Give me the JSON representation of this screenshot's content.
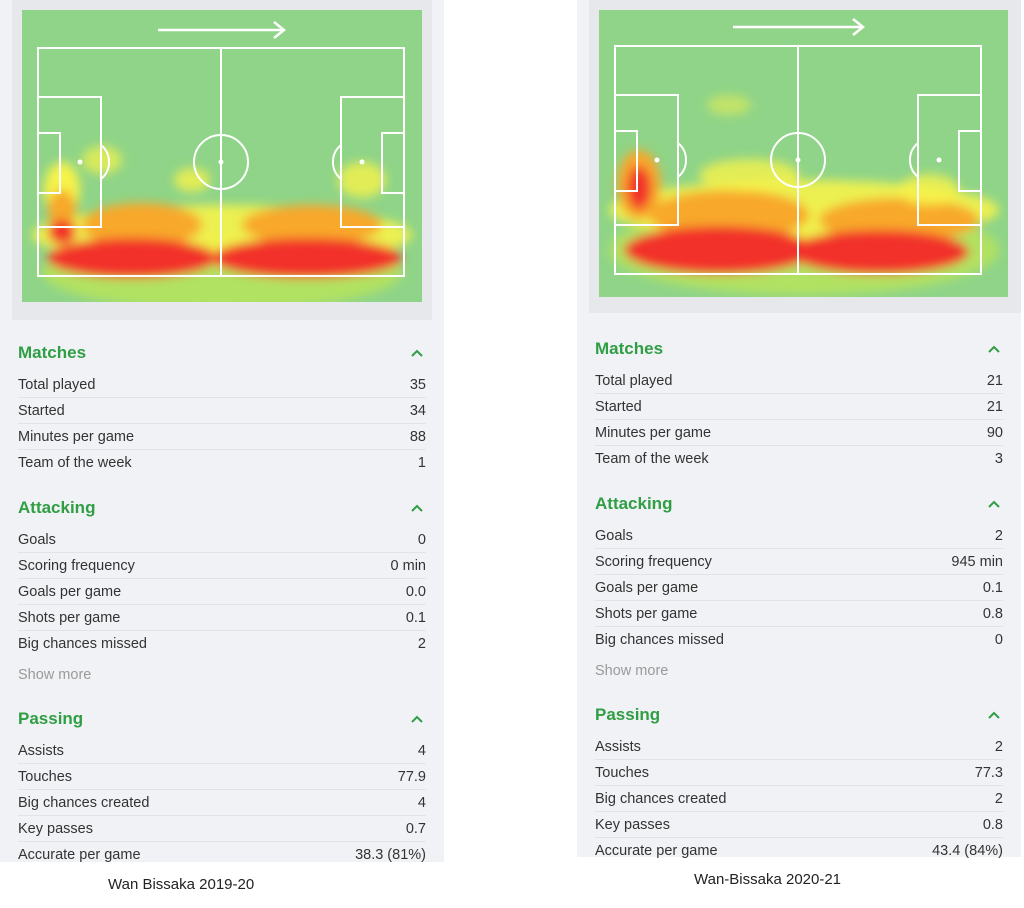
{
  "panels": [
    {
      "sections": {
        "matches": {
          "title": "Matches",
          "rows": [
            {
              "label": "Total played",
              "value": "35"
            },
            {
              "label": "Started",
              "value": "34"
            },
            {
              "label": "Minutes per game",
              "value": "88"
            },
            {
              "label": "Team of the week",
              "value": "1"
            }
          ]
        },
        "attacking": {
          "title": "Attacking",
          "rows": [
            {
              "label": "Goals",
              "value": "0"
            },
            {
              "label": "Scoring frequency",
              "value": "0 min"
            },
            {
              "label": "Goals per game",
              "value": "0.0"
            },
            {
              "label": "Shots per game",
              "value": "0.1"
            },
            {
              "label": "Big chances missed",
              "value": "2"
            }
          ],
          "show_more": "Show more"
        },
        "passing": {
          "title": "Passing",
          "rows": [
            {
              "label": "Assists",
              "value": "4"
            },
            {
              "label": "Touches",
              "value": "77.9"
            },
            {
              "label": "Big chances created",
              "value": "4"
            },
            {
              "label": "Key passes",
              "value": "0.7"
            },
            {
              "label": "Accurate per game",
              "value": "38.3 (81%)"
            }
          ]
        }
      },
      "caption": "Wan Bissaka 2019-20"
    },
    {
      "sections": {
        "matches": {
          "title": "Matches",
          "rows": [
            {
              "label": "Total played",
              "value": "21"
            },
            {
              "label": "Started",
              "value": "21"
            },
            {
              "label": "Minutes per game",
              "value": "90"
            },
            {
              "label": "Team of the week",
              "value": "3"
            }
          ]
        },
        "attacking": {
          "title": "Attacking",
          "rows": [
            {
              "label": "Goals",
              "value": "2"
            },
            {
              "label": "Scoring frequency",
              "value": "945 min"
            },
            {
              "label": "Goals per game",
              "value": "0.1"
            },
            {
              "label": "Shots per game",
              "value": "0.8"
            },
            {
              "label": "Big chances missed",
              "value": "0"
            }
          ],
          "show_more": "Show more"
        },
        "passing": {
          "title": "Passing",
          "rows": [
            {
              "label": "Assists",
              "value": "2"
            },
            {
              "label": "Touches",
              "value": "77.3"
            },
            {
              "label": "Big chances created",
              "value": "2"
            },
            {
              "label": "Key passes",
              "value": "0.8"
            },
            {
              "label": "Accurate per game",
              "value": "43.4 (84%)"
            }
          ]
        }
      },
      "caption": "Wan-Bissaka 2020-21"
    }
  ],
  "icons": {
    "heatmap_direction": "arrow-right-icon",
    "section_toggle": "chevron-up-icon"
  },
  "colors": {
    "accent": "#2f9e44",
    "pitch": "#8fd488",
    "heat_low": "#f6f34a",
    "heat_mid": "#f8a82a",
    "heat_high": "#f2322c",
    "panel_bg": "#f1f2f5"
  }
}
